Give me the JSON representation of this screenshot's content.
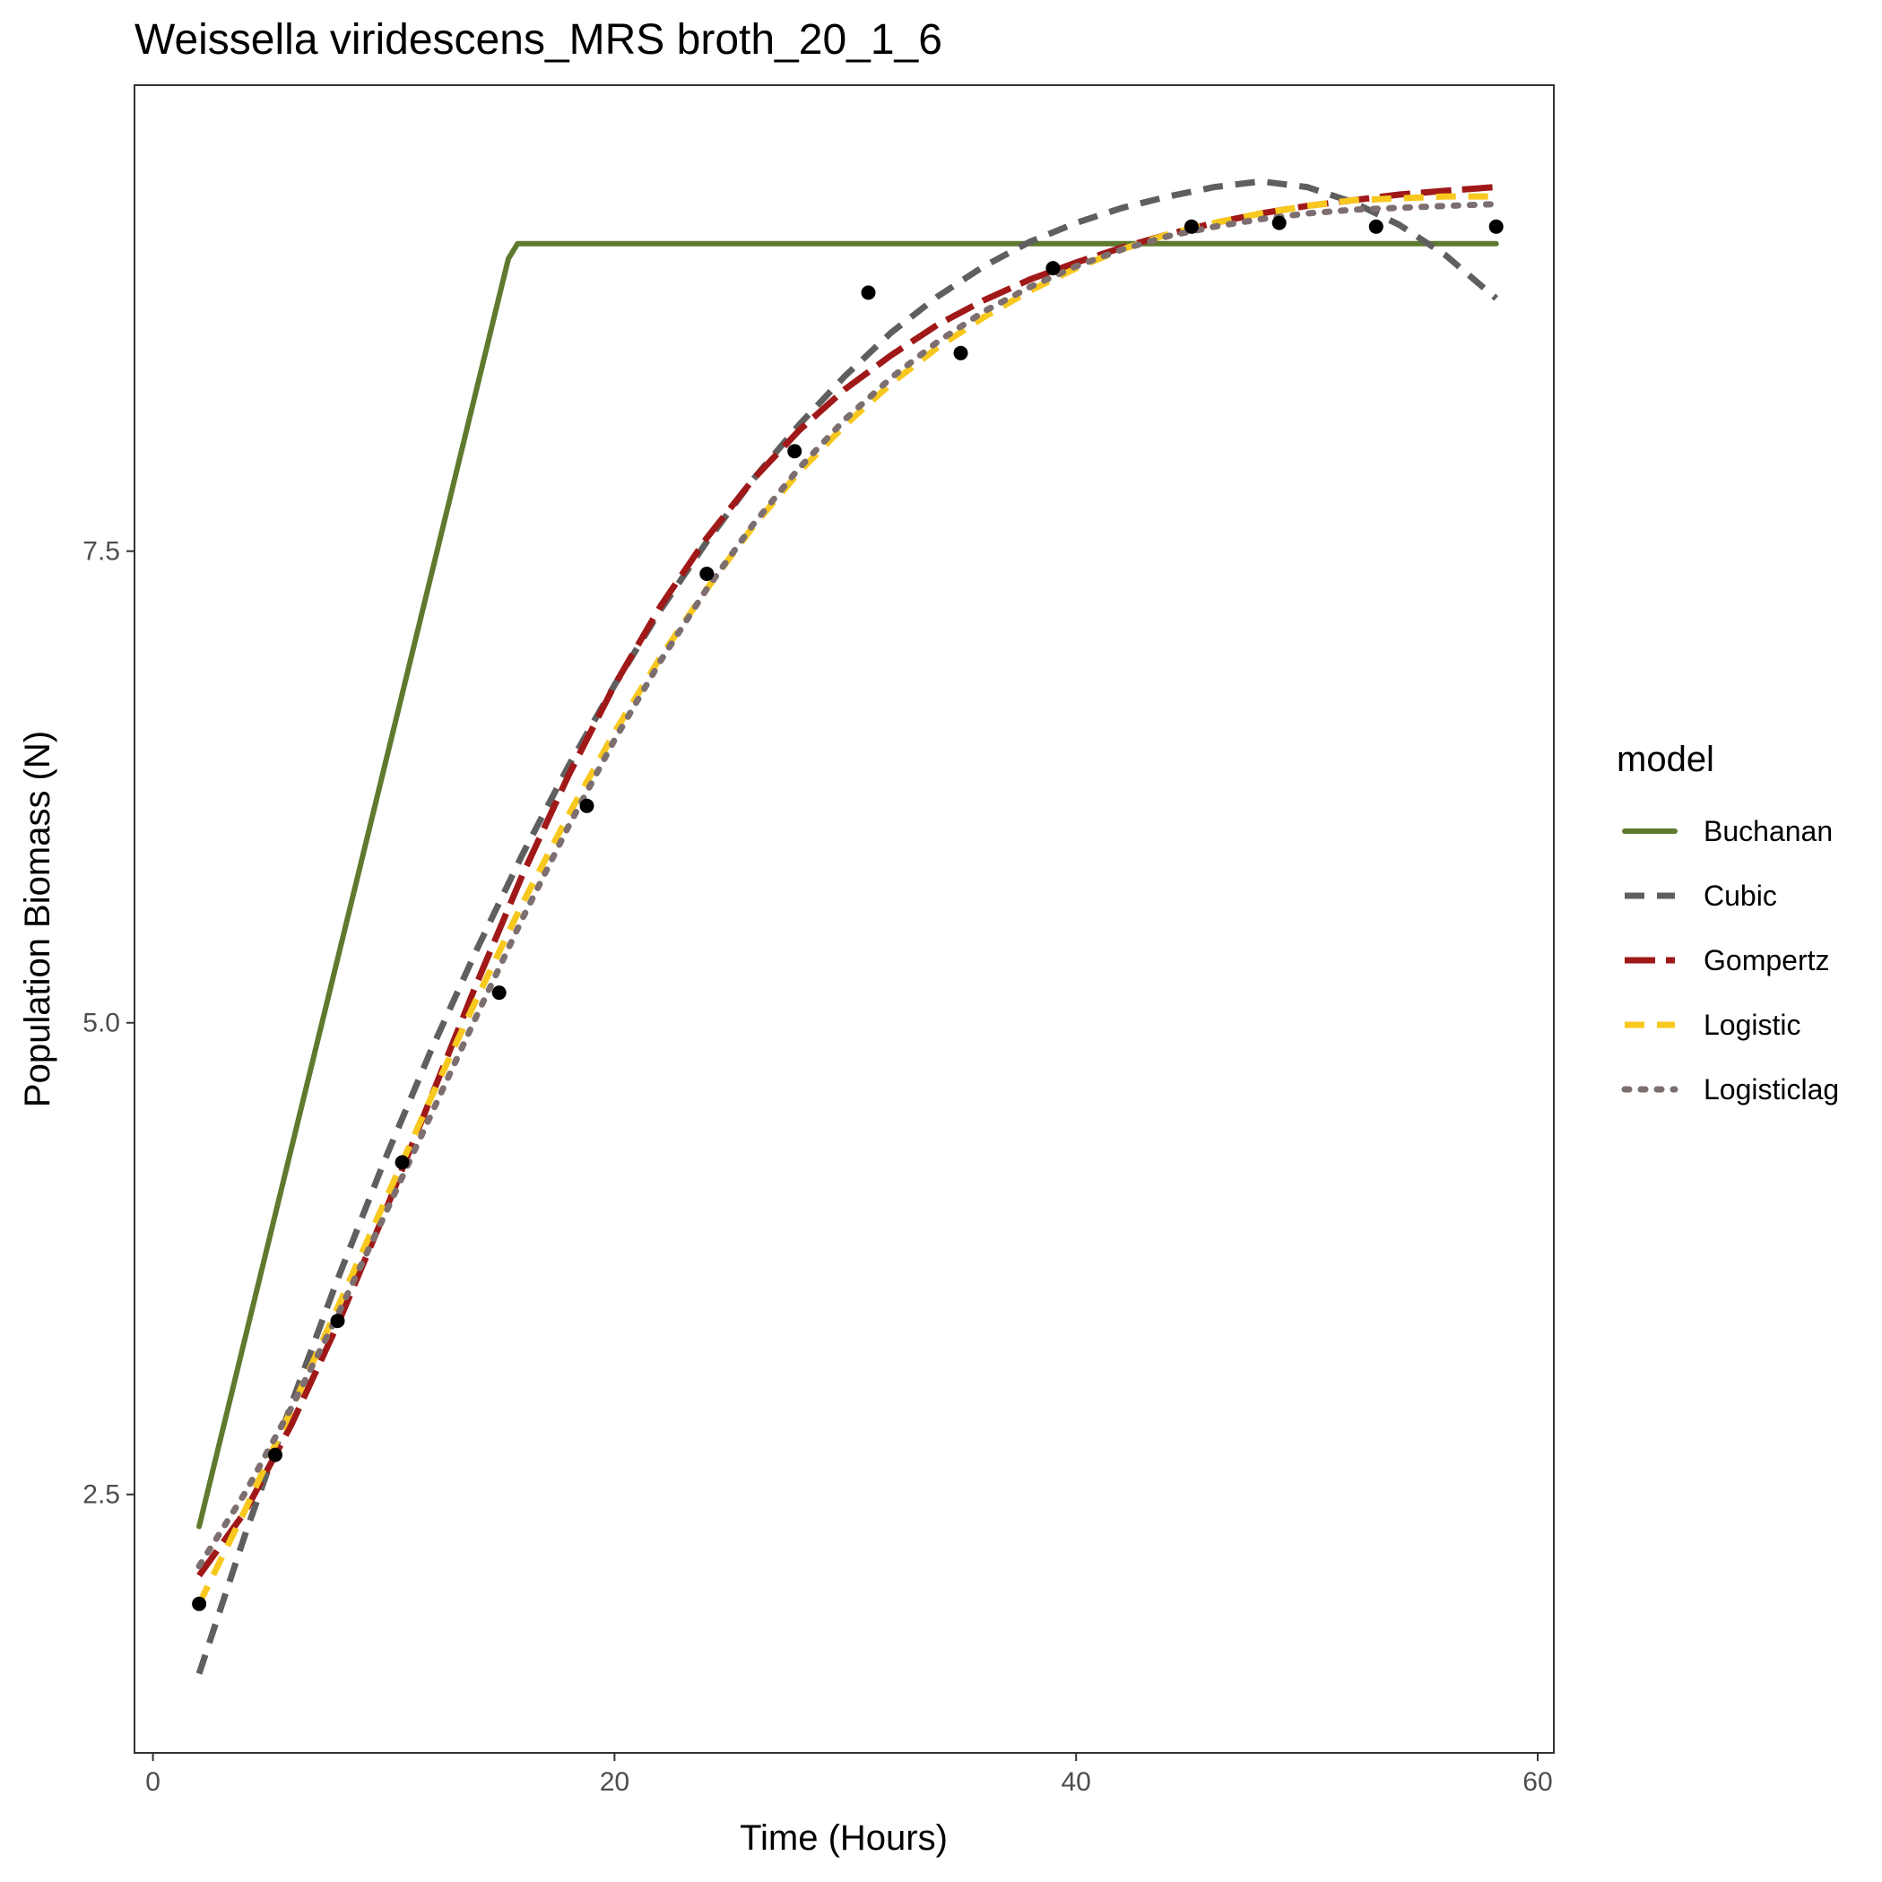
{
  "chart_data": {
    "type": "line",
    "title": "Weissella viridescens_MRS broth_20_1_6",
    "xlabel": "Time (Hours)",
    "ylabel": "Population Biomass (N)",
    "xlim": [
      -0.8,
      60.7
    ],
    "ylim": [
      1.13,
      9.97
    ],
    "x_ticks": [
      0,
      20,
      40,
      60
    ],
    "x_tick_labels": [
      "0",
      "20",
      "40",
      "60"
    ],
    "y_ticks": [
      2.5,
      5.0,
      7.5
    ],
    "y_tick_labels": [
      "2.5",
      "5.0",
      "7.5"
    ],
    "grid": false,
    "legend": {
      "title": "model",
      "position": "right",
      "entries": [
        "Buchanan",
        "Cubic",
        "Gompertz",
        "Logistic",
        "Logisticlag"
      ]
    },
    "points": {
      "x": [
        2,
        5.3,
        8,
        10.8,
        15,
        18.8,
        24,
        27.8,
        31,
        35,
        39,
        45,
        48.8,
        53,
        58.2
      ],
      "y": [
        1.92,
        2.71,
        3.42,
        4.26,
        5.16,
        6.15,
        7.38,
        8.03,
        8.87,
        8.55,
        9.0,
        9.22,
        9.24,
        9.22,
        9.22
      ]
    },
    "series": [
      {
        "name": "Buchanan",
        "color": "#5e7a2e",
        "dash": "solid",
        "x": [
          2,
          15.4,
          15.8,
          58.2
        ],
        "y": [
          2.33,
          9.05,
          9.13,
          9.13
        ]
      },
      {
        "name": "Cubic",
        "color": "#5f5f5f",
        "dash": "dashed",
        "x": [
          2,
          4,
          6,
          8,
          10,
          12,
          14,
          16,
          18,
          20,
          22,
          24,
          26,
          28,
          30,
          32,
          34,
          36,
          38,
          40,
          42,
          44,
          46,
          48,
          50,
          52,
          54,
          56,
          58.2
        ],
        "y": [
          1.55,
          2.29,
          2.98,
          3.64,
          4.26,
          4.84,
          5.38,
          5.89,
          6.36,
          6.79,
          7.19,
          7.55,
          7.88,
          8.17,
          8.43,
          8.66,
          8.85,
          9.01,
          9.14,
          9.24,
          9.32,
          9.38,
          9.43,
          9.46,
          9.43,
          9.35,
          9.23,
          9.07,
          8.84
        ]
      },
      {
        "name": "Gompertz",
        "color": "#a01818",
        "dash": "longdash",
        "x": [
          2,
          4,
          6,
          8,
          10,
          12,
          14,
          16,
          18,
          20,
          22,
          24,
          26,
          28,
          30,
          32,
          34,
          36,
          38,
          40,
          42,
          44,
          46,
          48,
          50,
          52,
          54,
          56,
          58.2
        ],
        "y": [
          2.07,
          2.41,
          2.87,
          3.4,
          3.98,
          4.59,
          5.2,
          5.78,
          6.31,
          6.79,
          7.21,
          7.57,
          7.88,
          8.14,
          8.36,
          8.54,
          8.7,
          8.83,
          8.94,
          9.03,
          9.11,
          9.18,
          9.24,
          9.29,
          9.33,
          9.36,
          9.39,
          9.41,
          9.43
        ]
      },
      {
        "name": "Logistic",
        "color": "#f8c81e",
        "dash": "dashed",
        "x": [
          2,
          4,
          6,
          8,
          10,
          12,
          14,
          16,
          18,
          20,
          22,
          24,
          26,
          28,
          30,
          32,
          34,
          36,
          38,
          40,
          42,
          44,
          46,
          48,
          50,
          52,
          54,
          56,
          58.2
        ],
        "y": [
          1.92,
          2.42,
          2.95,
          3.49,
          4.04,
          4.59,
          5.12,
          5.63,
          6.1,
          6.54,
          6.94,
          7.3,
          7.63,
          7.92,
          8.17,
          8.39,
          8.58,
          8.74,
          8.88,
          9.0,
          9.1,
          9.18,
          9.24,
          9.29,
          9.33,
          9.36,
          9.37,
          9.38,
          9.38
        ]
      },
      {
        "name": "Logisticlag",
        "color": "#7d6f6f",
        "dash": "dotted",
        "x": [
          2,
          4,
          6,
          8,
          10,
          12,
          14,
          16,
          18,
          20,
          22,
          24,
          26,
          28,
          30,
          32,
          34,
          36,
          38,
          40,
          42,
          44,
          46,
          48,
          50,
          52,
          54,
          56,
          58.2
        ],
        "y": [
          2.12,
          2.51,
          2.96,
          3.45,
          3.97,
          4.5,
          5.03,
          5.55,
          6.04,
          6.5,
          6.92,
          7.3,
          7.64,
          7.94,
          8.2,
          8.42,
          8.61,
          8.77,
          8.9,
          9.01,
          9.1,
          9.17,
          9.22,
          9.26,
          9.29,
          9.31,
          9.32,
          9.33,
          9.34
        ]
      }
    ]
  }
}
